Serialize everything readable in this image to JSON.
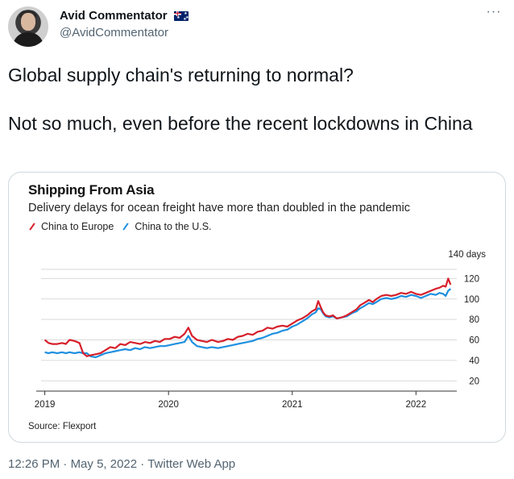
{
  "tweet": {
    "display_name": "Avid Commentator",
    "handle": "@AvidCommentator",
    "text": "Global supply chain's returning to normal?\n\nNot so much, even before the recent lockdowns in China",
    "timestamp": "12:26 PM",
    "separator": "·",
    "date": "May 5, 2022",
    "source_app": "Twitter Web App",
    "icons": {
      "more": "more-icon",
      "flag": "australia-flag-icon",
      "avatar": "avatar"
    }
  },
  "chart_data": {
    "type": "line",
    "title": "Shipping From Asia",
    "subtitle": "Delivery delays for ocean freight have more than doubled in the pandemic",
    "ylabel": "",
    "xlabel": "",
    "y_unit_label": "140 days",
    "ylim": [
      10,
      140
    ],
    "xlim": [
      2018.97,
      2022.33
    ],
    "yticks": [
      20,
      40,
      60,
      80,
      100,
      120
    ],
    "xticks": [
      {
        "value": 2019,
        "label": "2019"
      },
      {
        "value": 2020,
        "label": "2020"
      },
      {
        "value": 2021,
        "label": "2021"
      },
      {
        "value": 2022,
        "label": "2022"
      }
    ],
    "grid": true,
    "legend_placement": "top-left",
    "source": "Source: Flexport",
    "colors": {
      "europe": "#d6202b",
      "us": "#1e90e0"
    },
    "series": [
      {
        "name": "China to Europe",
        "color": "#d6202b",
        "points": [
          [
            2019.0,
            60
          ],
          [
            2019.03,
            57
          ],
          [
            2019.06,
            56
          ],
          [
            2019.1,
            56
          ],
          [
            2019.14,
            57
          ],
          [
            2019.17,
            56
          ],
          [
            2019.2,
            60
          ],
          [
            2019.24,
            59
          ],
          [
            2019.28,
            57
          ],
          [
            2019.31,
            47
          ],
          [
            2019.34,
            44
          ],
          [
            2019.37,
            45
          ],
          [
            2019.41,
            46
          ],
          [
            2019.45,
            47
          ],
          [
            2019.49,
            50
          ],
          [
            2019.53,
            53
          ],
          [
            2019.57,
            52
          ],
          [
            2019.61,
            56
          ],
          [
            2019.65,
            55
          ],
          [
            2019.69,
            58
          ],
          [
            2019.73,
            57
          ],
          [
            2019.77,
            56
          ],
          [
            2019.81,
            58
          ],
          [
            2019.85,
            57
          ],
          [
            2019.89,
            59
          ],
          [
            2019.93,
            58
          ],
          [
            2019.97,
            61
          ],
          [
            2020.01,
            61
          ],
          [
            2020.05,
            63
          ],
          [
            2020.09,
            62
          ],
          [
            2020.13,
            66
          ],
          [
            2020.16,
            72
          ],
          [
            2020.19,
            64
          ],
          [
            2020.23,
            60
          ],
          [
            2020.27,
            59
          ],
          [
            2020.31,
            58
          ],
          [
            2020.35,
            60
          ],
          [
            2020.4,
            58
          ],
          [
            2020.44,
            59
          ],
          [
            2020.48,
            61
          ],
          [
            2020.52,
            60
          ],
          [
            2020.56,
            63
          ],
          [
            2020.6,
            64
          ],
          [
            2020.64,
            66
          ],
          [
            2020.68,
            65
          ],
          [
            2020.72,
            68
          ],
          [
            2020.76,
            69
          ],
          [
            2020.8,
            72
          ],
          [
            2020.84,
            71
          ],
          [
            2020.88,
            73
          ],
          [
            2020.92,
            74
          ],
          [
            2020.96,
            73
          ],
          [
            2021.0,
            76
          ],
          [
            2021.04,
            79
          ],
          [
            2021.08,
            81
          ],
          [
            2021.12,
            84
          ],
          [
            2021.16,
            88
          ],
          [
            2021.19,
            90
          ],
          [
            2021.21,
            98
          ],
          [
            2021.23,
            92
          ],
          [
            2021.25,
            87
          ],
          [
            2021.27,
            84
          ],
          [
            2021.3,
            83
          ],
          [
            2021.33,
            84
          ],
          [
            2021.36,
            81
          ],
          [
            2021.4,
            82
          ],
          [
            2021.44,
            84
          ],
          [
            2021.48,
            87
          ],
          [
            2021.52,
            90
          ],
          [
            2021.55,
            94
          ],
          [
            2021.58,
            96
          ],
          [
            2021.62,
            99
          ],
          [
            2021.65,
            97
          ],
          [
            2021.68,
            100
          ],
          [
            2021.72,
            103
          ],
          [
            2021.76,
            104
          ],
          [
            2021.8,
            103
          ],
          [
            2021.84,
            104
          ],
          [
            2021.88,
            106
          ],
          [
            2021.92,
            105
          ],
          [
            2021.96,
            107
          ],
          [
            2022.0,
            105
          ],
          [
            2022.04,
            104
          ],
          [
            2022.08,
            106
          ],
          [
            2022.12,
            108
          ],
          [
            2022.16,
            110
          ],
          [
            2022.19,
            111
          ],
          [
            2022.22,
            113
          ],
          [
            2022.24,
            112
          ],
          [
            2022.26,
            120
          ],
          [
            2022.28,
            114
          ]
        ]
      },
      {
        "name": "China to the U.S.",
        "color": "#1e90e0",
        "points": [
          [
            2019.0,
            48
          ],
          [
            2019.03,
            47
          ],
          [
            2019.06,
            48
          ],
          [
            2019.1,
            47
          ],
          [
            2019.14,
            48
          ],
          [
            2019.17,
            47
          ],
          [
            2019.2,
            48
          ],
          [
            2019.24,
            47
          ],
          [
            2019.28,
            48
          ],
          [
            2019.31,
            47
          ],
          [
            2019.34,
            47
          ],
          [
            2019.37,
            44
          ],
          [
            2019.41,
            43
          ],
          [
            2019.45,
            45
          ],
          [
            2019.49,
            47
          ],
          [
            2019.53,
            48
          ],
          [
            2019.57,
            49
          ],
          [
            2019.61,
            50
          ],
          [
            2019.65,
            51
          ],
          [
            2019.69,
            50
          ],
          [
            2019.73,
            52
          ],
          [
            2019.77,
            51
          ],
          [
            2019.81,
            53
          ],
          [
            2019.85,
            52
          ],
          [
            2019.89,
            53
          ],
          [
            2019.93,
            54
          ],
          [
            2019.97,
            54
          ],
          [
            2020.01,
            55
          ],
          [
            2020.05,
            56
          ],
          [
            2020.09,
            57
          ],
          [
            2020.13,
            58
          ],
          [
            2020.16,
            64
          ],
          [
            2020.19,
            58
          ],
          [
            2020.23,
            54
          ],
          [
            2020.27,
            53
          ],
          [
            2020.31,
            52
          ],
          [
            2020.35,
            53
          ],
          [
            2020.4,
            52
          ],
          [
            2020.44,
            53
          ],
          [
            2020.48,
            54
          ],
          [
            2020.52,
            55
          ],
          [
            2020.56,
            56
          ],
          [
            2020.6,
            57
          ],
          [
            2020.64,
            58
          ],
          [
            2020.68,
            59
          ],
          [
            2020.72,
            61
          ],
          [
            2020.76,
            62
          ],
          [
            2020.8,
            64
          ],
          [
            2020.84,
            66
          ],
          [
            2020.88,
            67
          ],
          [
            2020.92,
            69
          ],
          [
            2020.96,
            70
          ],
          [
            2021.0,
            73
          ],
          [
            2021.04,
            75
          ],
          [
            2021.08,
            78
          ],
          [
            2021.12,
            81
          ],
          [
            2021.16,
            85
          ],
          [
            2021.19,
            87
          ],
          [
            2021.21,
            91
          ],
          [
            2021.23,
            90
          ],
          [
            2021.25,
            86
          ],
          [
            2021.27,
            83
          ],
          [
            2021.3,
            82
          ],
          [
            2021.33,
            83
          ],
          [
            2021.36,
            81
          ],
          [
            2021.4,
            82
          ],
          [
            2021.44,
            83
          ],
          [
            2021.48,
            86
          ],
          [
            2021.52,
            88
          ],
          [
            2021.55,
            91
          ],
          [
            2021.58,
            93
          ],
          [
            2021.62,
            96
          ],
          [
            2021.65,
            95
          ],
          [
            2021.68,
            97
          ],
          [
            2021.72,
            100
          ],
          [
            2021.76,
            101
          ],
          [
            2021.8,
            100
          ],
          [
            2021.84,
            101
          ],
          [
            2021.88,
            103
          ],
          [
            2021.92,
            102
          ],
          [
            2021.96,
            104
          ],
          [
            2022.0,
            103
          ],
          [
            2022.04,
            101
          ],
          [
            2022.08,
            103
          ],
          [
            2022.12,
            105
          ],
          [
            2022.16,
            104
          ],
          [
            2022.19,
            106
          ],
          [
            2022.22,
            105
          ],
          [
            2022.24,
            103
          ],
          [
            2022.26,
            108
          ],
          [
            2022.28,
            110
          ]
        ]
      }
    ]
  }
}
